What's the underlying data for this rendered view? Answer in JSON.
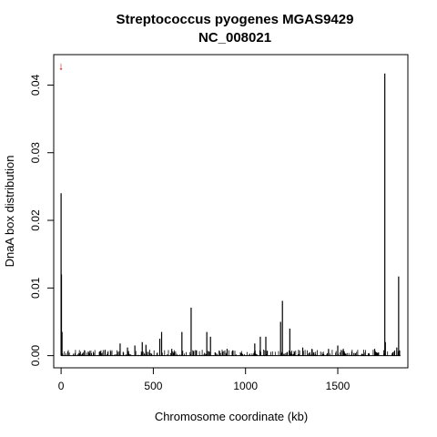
{
  "chart_data": {
    "type": "bar",
    "title": "Streptococcus pyogenes MGAS9429",
    "subtitle": "NC_008021",
    "xlabel": "Chromosome coordinate (kb)",
    "ylabel": "DnaA box distribution",
    "xlim": [
      -40,
      1880
    ],
    "ylim": [
      -0.0018,
      0.0445
    ],
    "x_ticks": [
      0,
      500,
      1000,
      1500
    ],
    "y_ticks": [
      0.0,
      0.01,
      0.02,
      0.03,
      0.04
    ],
    "x_tick_labels": [
      "0",
      "500",
      "1000",
      "1500"
    ],
    "y_tick_labels": [
      "0.00",
      "0.01",
      "0.02",
      "0.03",
      "0.04"
    ],
    "grid": false,
    "marker": {
      "symbol": "↓",
      "x": 0,
      "y": 0.0423,
      "color": "#cc0000"
    },
    "peaks": [
      {
        "x": 0,
        "y": 0.024
      },
      {
        "x": 2,
        "y": 0.012
      },
      {
        "x": 5,
        "y": 0.0035
      },
      {
        "x": 320,
        "y": 0.0018
      },
      {
        "x": 360,
        "y": 0.0012
      },
      {
        "x": 400,
        "y": 0.0015
      },
      {
        "x": 440,
        "y": 0.002
      },
      {
        "x": 460,
        "y": 0.0016
      },
      {
        "x": 535,
        "y": 0.0025
      },
      {
        "x": 545,
        "y": 0.0035
      },
      {
        "x": 600,
        "y": 0.001
      },
      {
        "x": 655,
        "y": 0.0035
      },
      {
        "x": 705,
        "y": 0.0071
      },
      {
        "x": 790,
        "y": 0.0035
      },
      {
        "x": 810,
        "y": 0.0028
      },
      {
        "x": 900,
        "y": 0.001
      },
      {
        "x": 1050,
        "y": 0.0018
      },
      {
        "x": 1080,
        "y": 0.0028
      },
      {
        "x": 1110,
        "y": 0.0028
      },
      {
        "x": 1190,
        "y": 0.005
      },
      {
        "x": 1200,
        "y": 0.0081
      },
      {
        "x": 1240,
        "y": 0.004
      },
      {
        "x": 1310,
        "y": 0.0012
      },
      {
        "x": 1360,
        "y": 0.001
      },
      {
        "x": 1450,
        "y": 0.001
      },
      {
        "x": 1500,
        "y": 0.0015
      },
      {
        "x": 1530,
        "y": 0.001
      },
      {
        "x": 1700,
        "y": 0.001
      },
      {
        "x": 1755,
        "y": 0.0417
      },
      {
        "x": 1758,
        "y": 0.002
      },
      {
        "x": 1820,
        "y": 0.0012
      },
      {
        "x": 1830,
        "y": 0.0117
      }
    ]
  }
}
